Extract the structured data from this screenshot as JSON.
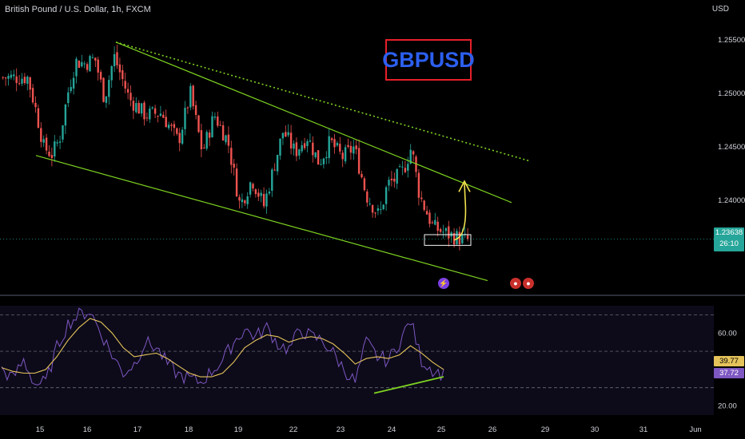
{
  "header": {
    "symbol_title": "British Pound / U.S. Dollar, 1h, FXCM",
    "currency": "USD"
  },
  "annotation": {
    "label": "GBPUSD"
  },
  "price_badge": {
    "price": "1.23638",
    "countdown": "26:10"
  },
  "rsi_badges": {
    "ma": "39.77",
    "rsi": "37.72"
  },
  "colors": {
    "background": "#000000",
    "bull": "#26a69a",
    "bear": "#ef5350",
    "trendline": "#7ed321",
    "rsi": "#7e57c2",
    "rsi_ma": "#e5c35a",
    "arrow": "#f2e34d"
  },
  "chart_data": [
    {
      "type": "candlestick",
      "title": "British Pound / U.S. Dollar, 1h, FXCM",
      "x_ticks": [
        "15",
        "16",
        "17",
        "18",
        "19",
        "22",
        "23",
        "24",
        "25",
        "26",
        "29",
        "30",
        "31",
        "Jun"
      ],
      "y_ticks": [
        1.255,
        1.25,
        1.245,
        1.24
      ],
      "y_tick_labels": [
        "1.25500",
        "1.25000",
        "1.24500",
        "1.24000"
      ],
      "ylim": [
        1.2315,
        1.2565
      ],
      "last_price": 1.23638,
      "close_path": [
        [
          "15",
          1.2515
        ],
        [
          "15",
          1.2485
        ],
        [
          "15",
          1.245
        ],
        [
          "15",
          1.2443
        ],
        [
          "15",
          1.2458
        ],
        [
          "15",
          1.25
        ],
        [
          "16",
          1.253
        ],
        [
          "16",
          1.2528
        ],
        [
          "16",
          1.2533
        ],
        [
          "16",
          1.2495
        ],
        [
          "16",
          1.2535
        ],
        [
          "17",
          1.2495
        ],
        [
          "17",
          1.248
        ],
        [
          "17",
          1.2482
        ],
        [
          "18",
          1.2455
        ],
        [
          "18",
          1.25
        ],
        [
          "18",
          1.2445
        ],
        [
          "18",
          1.248
        ],
        [
          "19",
          1.2455
        ],
        [
          "19",
          1.2395
        ],
        [
          "19",
          1.242
        ],
        [
          "19",
          1.2395
        ],
        [
          "22",
          1.2465
        ],
        [
          "22",
          1.2445
        ],
        [
          "22",
          1.246
        ],
        [
          "22",
          1.2435
        ],
        [
          "23",
          1.2455
        ],
        [
          "23",
          1.244
        ],
        [
          "23",
          1.245
        ],
        [
          "23",
          1.2405
        ],
        [
          "24",
          1.2385
        ],
        [
          "24",
          1.2415
        ],
        [
          "24",
          1.242
        ],
        [
          "24",
          1.2428
        ],
        [
          "24",
          1.245
        ],
        [
          "24",
          1.2405
        ],
        [
          "25",
          1.2375
        ],
        [
          "25",
          1.2368
        ],
        [
          "25",
          1.2363
        ]
      ],
      "annotations": [
        "descending channel",
        "dotted resistance line",
        "up arrow"
      ]
    },
    {
      "type": "line",
      "name": "RSI",
      "y_ticks": [
        60,
        20
      ],
      "y_tick_labels": [
        "60.00",
        "20.00"
      ],
      "levels": [
        70,
        50,
        30
      ],
      "ylim": [
        15,
        75
      ],
      "series": [
        {
          "values": [
            40,
            35,
            45,
            32,
            33,
            52,
            65,
            70,
            72,
            60,
            48,
            38,
            43,
            55,
            52,
            43,
            37,
            35,
            33,
            39,
            45,
            55,
            62,
            58,
            63,
            54,
            51,
            62,
            58,
            56,
            49,
            40,
            33,
            55,
            47,
            45,
            55,
            67,
            45,
            40,
            37
          ]
        },
        {
          "values": [
            41,
            39,
            38,
            38,
            40,
            47,
            56,
            63,
            68,
            66,
            60,
            52,
            47,
            48,
            49,
            46,
            42,
            38,
            36,
            36,
            38,
            44,
            52,
            56,
            59,
            58,
            55,
            57,
            58,
            57,
            54,
            49,
            43,
            46,
            47,
            46,
            48,
            53,
            49,
            44,
            40
          ]
        }
      ],
      "annotations": [
        "bullish divergence line"
      ]
    }
  ]
}
